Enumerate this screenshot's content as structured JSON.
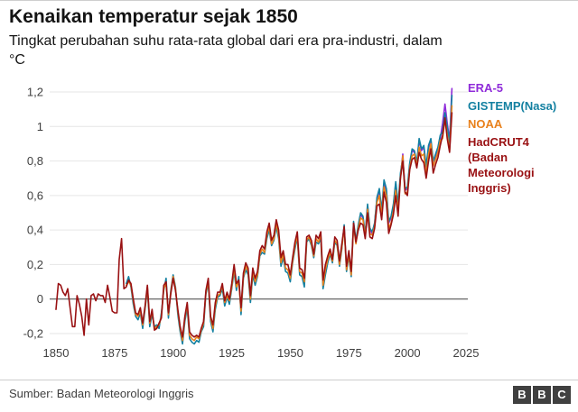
{
  "header": {
    "title": "Kenaikan temperatur sejak 1850",
    "subtitle": "Tingkat perubahan suhu rata-rata global dari era pra-industri, dalam °C"
  },
  "footer": {
    "source": "Sumber: Badan Meteorologi Inggris",
    "logo_letters": [
      "B",
      "B",
      "C"
    ]
  },
  "legend": {
    "items": [
      {
        "id": "era5",
        "label": "ERA-5",
        "color": "#8F2BD9"
      },
      {
        "id": "gistemp",
        "label": "GISTEMP(Nasa)",
        "color": "#1380A1"
      },
      {
        "id": "noaa",
        "label": "NOAA",
        "color": "#E8811C"
      },
      {
        "id": "hadcrut4",
        "label": "HadCRUT4 (Badan Meteorologi Inggris)",
        "color": "#991113"
      }
    ]
  },
  "chart_data": {
    "type": "line",
    "title": "Kenaikan temperatur sejak 1850",
    "xlabel": "",
    "ylabel": "°C",
    "xlim": [
      1850,
      2025
    ],
    "ylim": [
      -0.2,
      1.2
    ],
    "grid": "horizontal",
    "legend_position": "right",
    "colors": {
      "grid": "#E6E6E6",
      "zero_line": "#404040",
      "axis_text": "#404040"
    },
    "x_ticks": {
      "values": [
        1850,
        1875,
        1900,
        1925,
        1950,
        1975,
        2000,
        2025
      ],
      "labels": [
        "1850",
        "1875",
        "1900",
        "1925",
        "1950",
        "1975",
        "2000",
        "2025"
      ]
    },
    "y_ticks": {
      "values": [
        1.2,
        1,
        0.8,
        0.6,
        0.4,
        0.2,
        0,
        -0.2
      ],
      "labels": [
        "1,2",
        "1",
        "0,8",
        "0,6",
        "0,4",
        "0,2",
        "0",
        "-0,2"
      ]
    },
    "series": [
      {
        "id": "era5",
        "name": "ERA-5",
        "color": "#8F2BD9",
        "x_start": 1979,
        "x_step": 1,
        "values": [
          0.42,
          0.49,
          0.47,
          0.37,
          0.54,
          0.4,
          0.38,
          0.44,
          0.58,
          0.63,
          0.5,
          0.67,
          0.63,
          0.44,
          0.47,
          0.54,
          0.67,
          0.53,
          0.71,
          0.84,
          0.63,
          0.64,
          0.78,
          0.86,
          0.85,
          0.78,
          0.92,
          0.86,
          0.88,
          0.76,
          0.88,
          0.91,
          0.77,
          0.82,
          0.86,
          0.93,
          1.02,
          1.13,
          1.02,
          0.92,
          1.22
        ]
      },
      {
        "id": "gistemp",
        "name": "GISTEMP(Nasa)",
        "color": "#1380A1",
        "x_start": 1880,
        "x_step": 1,
        "values": [
          0.09,
          0.13,
          0.07,
          -0.03,
          -0.1,
          -0.12,
          -0.08,
          -0.17,
          -0.06,
          0.06,
          -0.16,
          -0.09,
          -0.16,
          -0.15,
          -0.17,
          -0.08,
          0.05,
          0.12,
          -0.11,
          0.05,
          0.14,
          0.07,
          -0.09,
          -0.19,
          -0.26,
          -0.13,
          -0.05,
          -0.23,
          -0.25,
          -0.26,
          -0.24,
          -0.25,
          -0.19,
          -0.16,
          0.03,
          0.09,
          -0.13,
          -0.19,
          -0.06,
          0.01,
          0.02,
          0.06,
          -0.04,
          0.01,
          -0.03,
          0.06,
          0.16,
          0.05,
          0.13,
          -0.09,
          0.12,
          0.17,
          0.14,
          -0.02,
          0.14,
          0.08,
          0.13,
          0.25,
          0.27,
          0.26,
          0.35,
          0.4,
          0.31,
          0.34,
          0.42,
          0.35,
          0.19,
          0.24,
          0.16,
          0.15,
          0.1,
          0.21,
          0.29,
          0.36,
          0.14,
          0.13,
          0.07,
          0.33,
          0.35,
          0.31,
          0.24,
          0.33,
          0.32,
          0.35,
          0.06,
          0.14,
          0.21,
          0.26,
          0.21,
          0.33,
          0.31,
          0.19,
          0.29,
          0.43,
          0.16,
          0.25,
          0.13,
          0.45,
          0.34,
          0.43,
          0.5,
          0.48,
          0.38,
          0.55,
          0.41,
          0.39,
          0.44,
          0.59,
          0.64,
          0.51,
          0.69,
          0.64,
          0.45,
          0.48,
          0.55,
          0.68,
          0.55,
          0.73,
          0.82,
          0.64,
          0.65,
          0.79,
          0.87,
          0.86,
          0.79,
          0.93,
          0.87,
          0.89,
          0.77,
          0.89,
          0.93,
          0.8,
          0.84,
          0.88,
          0.95,
          0.97,
          1.08,
          1.0,
          0.9,
          1.18
        ]
      },
      {
        "id": "noaa",
        "name": "NOAA",
        "color": "#E8811C",
        "x_start": 1880,
        "x_step": 1,
        "values": [
          0.08,
          0.1,
          0.08,
          -0.01,
          -0.09,
          -0.1,
          -0.07,
          -0.15,
          -0.05,
          0.07,
          -0.14,
          -0.07,
          -0.17,
          -0.16,
          -0.15,
          -0.1,
          0.06,
          0.09,
          -0.09,
          0.04,
          0.13,
          0.06,
          -0.07,
          -0.17,
          -0.24,
          -0.11,
          -0.03,
          -0.21,
          -0.23,
          -0.24,
          -0.22,
          -0.23,
          -0.18,
          -0.14,
          0.04,
          0.1,
          -0.11,
          -0.17,
          -0.04,
          0.02,
          0.03,
          0.08,
          -0.02,
          0.02,
          -0.01,
          0.07,
          0.18,
          0.07,
          0.1,
          -0.07,
          0.13,
          0.19,
          0.16,
          0.0,
          0.16,
          0.1,
          0.14,
          0.26,
          0.29,
          0.27,
          0.37,
          0.42,
          0.32,
          0.35,
          0.44,
          0.37,
          0.21,
          0.26,
          0.18,
          0.17,
          0.12,
          0.22,
          0.31,
          0.37,
          0.16,
          0.15,
          0.1,
          0.34,
          0.36,
          0.32,
          0.25,
          0.35,
          0.33,
          0.37,
          0.08,
          0.17,
          0.23,
          0.27,
          0.22,
          0.34,
          0.32,
          0.2,
          0.3,
          0.41,
          0.17,
          0.26,
          0.14,
          0.43,
          0.32,
          0.41,
          0.47,
          0.46,
          0.36,
          0.52,
          0.38,
          0.37,
          0.42,
          0.56,
          0.6,
          0.48,
          0.65,
          0.6,
          0.41,
          0.44,
          0.51,
          0.63,
          0.51,
          0.7,
          0.83,
          0.61,
          0.62,
          0.76,
          0.83,
          0.84,
          0.77,
          0.88,
          0.83,
          0.84,
          0.72,
          0.84,
          0.9,
          0.77,
          0.81,
          0.85,
          0.92,
          0.93,
          1.04,
          0.95,
          0.86,
          1.12
        ]
      },
      {
        "id": "hadcrut4",
        "name": "HadCRUT4 (Badan Meteorologi Inggris)",
        "color": "#991113",
        "x_start": 1850,
        "x_step": 1,
        "values": [
          -0.06,
          0.09,
          0.08,
          0.04,
          0.02,
          0.06,
          -0.05,
          -0.16,
          -0.16,
          0.02,
          -0.03,
          -0.1,
          -0.21,
          0.0,
          -0.15,
          0.02,
          0.03,
          -0.01,
          0.03,
          0.02,
          0.02,
          -0.02,
          0.08,
          0.01,
          -0.07,
          -0.08,
          -0.08,
          0.23,
          0.35,
          0.06,
          0.07,
          0.11,
          0.09,
          0.0,
          -0.08,
          -0.09,
          -0.05,
          -0.14,
          -0.04,
          0.08,
          -0.13,
          -0.06,
          -0.18,
          -0.17,
          -0.14,
          -0.11,
          0.08,
          0.1,
          -0.08,
          0.03,
          0.12,
          0.05,
          -0.06,
          -0.16,
          -0.22,
          -0.1,
          -0.02,
          -0.19,
          -0.21,
          -0.22,
          -0.21,
          -0.22,
          -0.17,
          -0.13,
          0.05,
          0.12,
          -0.1,
          -0.15,
          -0.02,
          0.04,
          0.04,
          0.09,
          -0.01,
          0.04,
          0.0,
          0.09,
          0.2,
          0.09,
          0.11,
          -0.05,
          0.15,
          0.21,
          0.18,
          0.02,
          0.18,
          0.12,
          0.16,
          0.28,
          0.31,
          0.29,
          0.39,
          0.44,
          0.34,
          0.37,
          0.46,
          0.4,
          0.24,
          0.28,
          0.2,
          0.2,
          0.14,
          0.24,
          0.33,
          0.39,
          0.18,
          0.17,
          0.12,
          0.36,
          0.37,
          0.34,
          0.26,
          0.37,
          0.35,
          0.39,
          0.11,
          0.2,
          0.25,
          0.29,
          0.23,
          0.36,
          0.34,
          0.22,
          0.32,
          0.42,
          0.19,
          0.28,
          0.16,
          0.44,
          0.33,
          0.4,
          0.44,
          0.43,
          0.35,
          0.5,
          0.36,
          0.35,
          0.41,
          0.54,
          0.55,
          0.46,
          0.62,
          0.56,
          0.38,
          0.43,
          0.49,
          0.6,
          0.48,
          0.7,
          0.8,
          0.62,
          0.6,
          0.75,
          0.81,
          0.82,
          0.76,
          0.85,
          0.81,
          0.79,
          0.7,
          0.8,
          0.87,
          0.73,
          0.78,
          0.82,
          0.89,
          0.95,
          1.05,
          0.93,
          0.85,
          1.08
        ]
      }
    ]
  }
}
